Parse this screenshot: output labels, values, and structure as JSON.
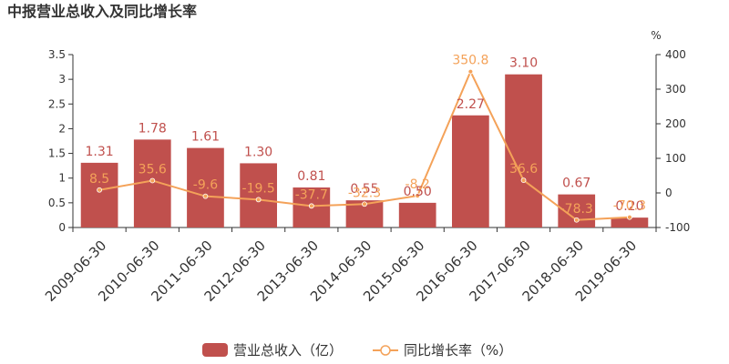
{
  "chart_data": {
    "type": "bar",
    "title": "中报营业总收入及同比增长率",
    "categories": [
      "2009-06-30",
      "2010-06-30",
      "2011-06-30",
      "2012-06-30",
      "2013-06-30",
      "2014-06-30",
      "2015-06-30",
      "2016-06-30",
      "2017-06-30",
      "2018-06-30",
      "2019-06-30"
    ],
    "series": [
      {
        "name": "营业总收入（亿）",
        "type": "bar",
        "axis": "left",
        "color": "#c0504d",
        "values": [
          1.31,
          1.78,
          1.61,
          1.3,
          0.81,
          0.55,
          0.5,
          2.27,
          3.1,
          0.67,
          0.2
        ],
        "labels": [
          "1.31",
          "1.78",
          "1.61",
          "1.30",
          "0.81",
          "0.55",
          "0.50",
          "2.27",
          "3.10",
          "0.67",
          "0.20"
        ]
      },
      {
        "name": "同比增长率（%）",
        "type": "line",
        "axis": "right",
        "color": "#f4a259",
        "values": [
          8.5,
          35.6,
          -9.6,
          -19.5,
          -37.7,
          -32.3,
          -8.2,
          350.8,
          36.6,
          -78.3,
          -70.3
        ],
        "labels": [
          "8.5",
          "35.6",
          "-9.6",
          "-19.5",
          "-37.7",
          "-32.3",
          "-8.2",
          "350.8",
          "36.6",
          "-78.3",
          "-70.3"
        ]
      }
    ],
    "y_left": {
      "min": 0,
      "max": 3.5,
      "ticks": [
        "0",
        "0.5",
        "1",
        "1.5",
        "2",
        "2.5",
        "3",
        "3.5"
      ]
    },
    "y_right": {
      "min": -100,
      "max": 400,
      "ticks": [
        "-100",
        "0",
        "100",
        "200",
        "300",
        "400"
      ],
      "unit": "%"
    },
    "grid": false,
    "legend": "bottom-center"
  }
}
